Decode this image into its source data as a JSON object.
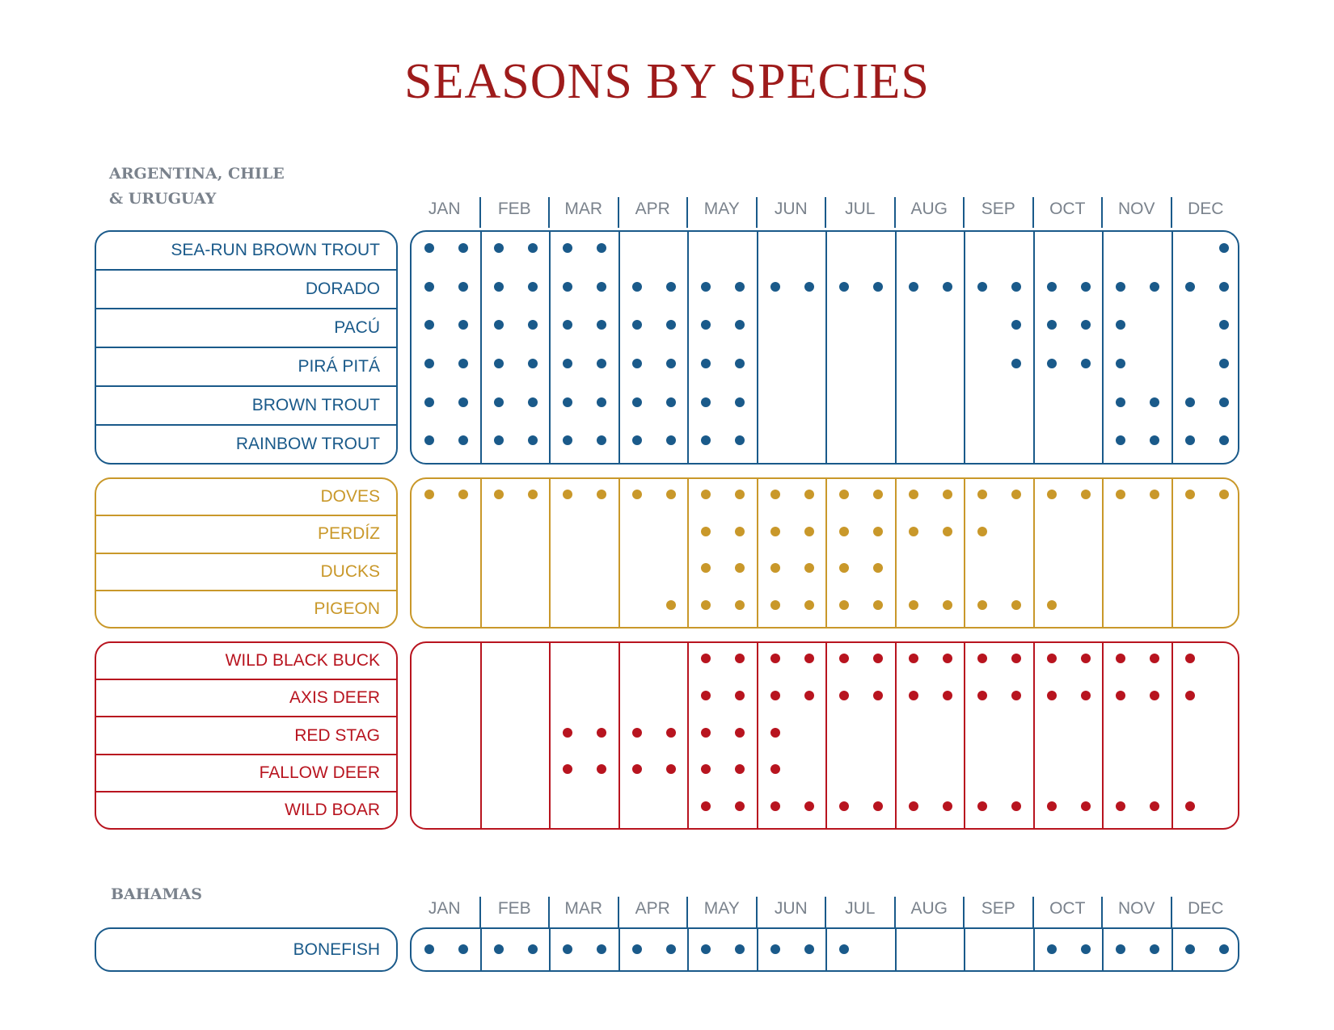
{
  "title": "SEASONS BY SPECIES",
  "months": [
    "JAN",
    "FEB",
    "MAR",
    "APR",
    "MAY",
    "JUN",
    "JUL",
    "AUG",
    "SEP",
    "OCT",
    "NOV",
    "DEC"
  ],
  "regions": {
    "south_america": "ARGENTINA, CHILE\n& URUGUAY",
    "bahamas": "BAHAMAS"
  },
  "colors": {
    "blue": "#1a5a8a",
    "gold": "#c9982a",
    "red": "#b8141f"
  },
  "groups": [
    {
      "id": "fish",
      "color": "blue",
      "rows": [
        {
          "name": "SEA-RUN BROWN TROUT",
          "dots": [
            1,
            1,
            1,
            1,
            1,
            1,
            0,
            0,
            0,
            0,
            0,
            0,
            0,
            0,
            0,
            0,
            0,
            0,
            0,
            0,
            0,
            0,
            0,
            1
          ]
        },
        {
          "name": "DORADO",
          "dots": [
            1,
            1,
            1,
            1,
            1,
            1,
            1,
            1,
            1,
            1,
            1,
            1,
            1,
            1,
            1,
            1,
            1,
            1,
            1,
            1,
            1,
            1,
            1,
            1
          ]
        },
        {
          "name": "PACÚ",
          "dots": [
            1,
            1,
            1,
            1,
            1,
            1,
            1,
            1,
            1,
            1,
            0,
            0,
            0,
            0,
            0,
            0,
            0,
            1,
            1,
            1,
            1,
            0,
            0,
            1
          ]
        },
        {
          "name": "PIRÁ PITÁ",
          "dots": [
            1,
            1,
            1,
            1,
            1,
            1,
            1,
            1,
            1,
            1,
            0,
            0,
            0,
            0,
            0,
            0,
            0,
            1,
            1,
            1,
            1,
            0,
            0,
            1
          ]
        },
        {
          "name": "BROWN TROUT",
          "dots": [
            1,
            1,
            1,
            1,
            1,
            1,
            1,
            1,
            1,
            1,
            0,
            0,
            0,
            0,
            0,
            0,
            0,
            0,
            0,
            0,
            1,
            1,
            1,
            1
          ]
        },
        {
          "name": "RAINBOW TROUT",
          "dots": [
            1,
            1,
            1,
            1,
            1,
            1,
            1,
            1,
            1,
            1,
            0,
            0,
            0,
            0,
            0,
            0,
            0,
            0,
            0,
            0,
            1,
            1,
            1,
            1
          ]
        }
      ]
    },
    {
      "id": "birds",
      "color": "gold",
      "rows": [
        {
          "name": "DOVES",
          "dots": [
            1,
            1,
            1,
            1,
            1,
            1,
            1,
            1,
            1,
            1,
            1,
            1,
            1,
            1,
            1,
            1,
            1,
            1,
            1,
            1,
            1,
            1,
            1,
            1
          ]
        },
        {
          "name": "PERDÍZ",
          "dots": [
            0,
            0,
            0,
            0,
            0,
            0,
            0,
            0,
            1,
            1,
            1,
            1,
            1,
            1,
            1,
            1,
            1,
            0,
            0,
            0,
            0,
            0,
            0,
            0
          ]
        },
        {
          "name": "DUCKS",
          "dots": [
            0,
            0,
            0,
            0,
            0,
            0,
            0,
            0,
            1,
            1,
            1,
            1,
            1,
            1,
            0,
            0,
            0,
            0,
            0,
            0,
            0,
            0,
            0,
            0
          ]
        },
        {
          "name": "PIGEON",
          "dots": [
            0,
            0,
            0,
            0,
            0,
            0,
            0,
            1,
            1,
            1,
            1,
            1,
            1,
            1,
            1,
            1,
            1,
            1,
            1,
            0,
            0,
            0,
            0,
            0
          ]
        }
      ]
    },
    {
      "id": "big_game",
      "color": "red",
      "rows": [
        {
          "name": "WILD BLACK BUCK",
          "dots": [
            0,
            0,
            0,
            0,
            0,
            0,
            0,
            0,
            1,
            1,
            1,
            1,
            1,
            1,
            1,
            1,
            1,
            1,
            1,
            1,
            1,
            1,
            1,
            0
          ]
        },
        {
          "name": "AXIS DEER",
          "dots": [
            0,
            0,
            0,
            0,
            0,
            0,
            0,
            0,
            1,
            1,
            1,
            1,
            1,
            1,
            1,
            1,
            1,
            1,
            1,
            1,
            1,
            1,
            1,
            0
          ]
        },
        {
          "name": "RED STAG",
          "dots": [
            0,
            0,
            0,
            0,
            1,
            1,
            1,
            1,
            1,
            1,
            1,
            0,
            0,
            0,
            0,
            0,
            0,
            0,
            0,
            0,
            0,
            0,
            0,
            0
          ]
        },
        {
          "name": "FALLOW DEER",
          "dots": [
            0,
            0,
            0,
            0,
            1,
            1,
            1,
            1,
            1,
            1,
            1,
            0,
            0,
            0,
            0,
            0,
            0,
            0,
            0,
            0,
            0,
            0,
            0,
            0
          ]
        },
        {
          "name": "WILD BOAR",
          "dots": [
            0,
            0,
            0,
            0,
            0,
            0,
            0,
            0,
            1,
            1,
            1,
            1,
            1,
            1,
            1,
            1,
            1,
            1,
            1,
            1,
            1,
            1,
            1,
            0
          ]
        }
      ]
    },
    {
      "id": "bahamas",
      "color": "blue",
      "rows": [
        {
          "name": "BONEFISH",
          "dots": [
            1,
            1,
            1,
            1,
            1,
            1,
            1,
            1,
            1,
            1,
            1,
            1,
            1,
            0,
            0,
            0,
            0,
            0,
            1,
            1,
            1,
            1,
            1,
            1
          ]
        }
      ]
    }
  ]
}
